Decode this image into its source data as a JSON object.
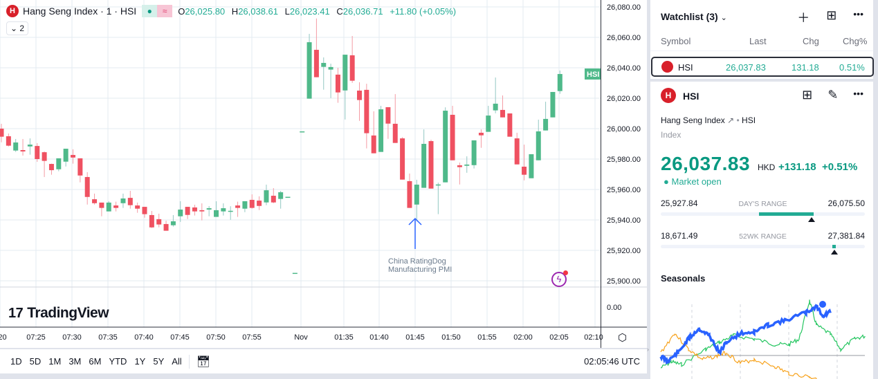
{
  "legend": {
    "title": "Hang Seng Index · 1 · HSI",
    "logo_text": "H",
    "open_label": "O",
    "open": "26,025.80",
    "high_label": "H",
    "high": "26,038.61",
    "low_label": "L",
    "low": "26,023.41",
    "close_label": "C",
    "close": "26,036.71",
    "change": "+11.80 (+0.05%)",
    "collapse_count": "2"
  },
  "price_axis": [
    "26,080.00",
    "26,060.00",
    "26,040.00",
    "26,020.00",
    "26,000.00",
    "25,980.00",
    "25,960.00",
    "25,940.00",
    "25,920.00",
    "25,900.00"
  ],
  "sub_pane_value": "0.00",
  "price_tag": "HSI",
  "time_axis": [
    ":20",
    "07:25",
    "07:30",
    "07:35",
    "07:40",
    "07:45",
    "07:50",
    "07:55",
    "Nov",
    "01:35",
    "01:40",
    "01:45",
    "01:50",
    "01:55",
    "02:00",
    "02:05",
    "02:10"
  ],
  "event": {
    "line1": "China RatingDog",
    "line2": "Manufacturing PMI"
  },
  "branding": "TradingView",
  "bottom_bar": {
    "ranges": [
      "1D",
      "5D",
      "1M",
      "3M",
      "6M",
      "YTD",
      "1Y",
      "5Y",
      "All"
    ],
    "clock": "02:05:46 UTC"
  },
  "colors": {
    "up": "#4fb98a",
    "down": "#ef5161",
    "grid": "#e3ebf2",
    "accent": "#089981",
    "brand": "#d8202a",
    "event": "#2962ff"
  },
  "chart_data": {
    "type": "candlestick",
    "ylim": [
      25900,
      26080
    ],
    "ohlc": [
      [
        26000,
        26003.2,
        25991,
        25994.7
      ],
      [
        25995,
        25996.8,
        25988.3,
        25988.8
      ],
      [
        25985.6,
        25993.2,
        25984.7,
        25990.9
      ],
      [
        25985.9,
        25993.2,
        25982.3,
        25985
      ],
      [
        25988.3,
        25993.6,
        25982.9,
        25989.5
      ],
      [
        25988.6,
        25990.5,
        25978.2,
        25980
      ],
      [
        25984.5,
        25985,
        25968.2,
        25978.8
      ],
      [
        25976.8,
        25977,
        25969.7,
        25972.7
      ],
      [
        25973.3,
        25980.5,
        25972,
        25980.5
      ],
      [
        25978.3,
        25986.8,
        25975.1,
        25986.8
      ],
      [
        25982.7,
        25986.4,
        25977,
        25981
      ],
      [
        25980.5,
        25980.5,
        25964.7,
        25969.2
      ],
      [
        25968.2,
        25971.4,
        25950.1,
        25955.1
      ],
      [
        25953.6,
        25957.3,
        25950.1,
        25951
      ],
      [
        25951.4,
        25951.4,
        25942.4,
        25947.9
      ],
      [
        25945.6,
        25952.3,
        25945.6,
        25951.4
      ],
      [
        25949.5,
        25952,
        25945.6,
        25947.9
      ],
      [
        25951,
        25957.3,
        25947.9,
        25954.1
      ],
      [
        25954.5,
        25959.1,
        25947.4,
        25949.7
      ],
      [
        25949.5,
        25951.4,
        25944.7,
        25947.4
      ],
      [
        25948.6,
        25948.6,
        25941.5,
        25943.8
      ],
      [
        25943.2,
        25945.9,
        25934.7,
        25935.1
      ],
      [
        25940.5,
        25944.1,
        25935.1,
        25937
      ],
      [
        25937.3,
        25939.5,
        25932.9,
        25932.9
      ],
      [
        25936.5,
        25943.2,
        25935.6,
        25939.1
      ],
      [
        25942.4,
        25952.3,
        25938.7,
        25946.8
      ],
      [
        25948.6,
        25948.6,
        25940.6,
        25943.3
      ],
      [
        25948.2,
        25950,
        25942.9,
        25945.6
      ],
      [
        25946.4,
        25950.9,
        25939.7,
        25945.6
      ],
      [
        25946.8,
        25949.1,
        25942.4,
        25947.7
      ],
      [
        25942,
        25952.3,
        25942,
        25946.4
      ],
      [
        25945.6,
        25950.9,
        25942.9,
        25947.7
      ],
      [
        25945.6,
        25949,
        25940.1,
        25946
      ],
      [
        25949.5,
        25952,
        25942,
        25947.9
      ],
      [
        25947.4,
        25952.3,
        25945.1,
        25952.3
      ],
      [
        25953.2,
        25956.8,
        25947.4,
        25947.9
      ],
      [
        25952.7,
        25955.5,
        25946.5,
        25949.2
      ],
      [
        25951.5,
        25963.2,
        25949.7,
        25959.5
      ],
      [
        25955.9,
        25960.9,
        25951,
        25951.5
      ],
      [
        25953.8,
        25959.1,
        25947.4,
        25958.2
      ],
      [
        25955,
        25955,
        25955,
        25955.2
      ],
      [
        25905,
        25905,
        25905,
        25905.2
      ],
      [
        25998,
        25998,
        25998,
        25998.2
      ],
      [
        26019.7,
        26062.3,
        26019.7,
        26056.8
      ],
      [
        26051.8,
        26072.4,
        26033.8,
        26033.8
      ],
      [
        26040.6,
        26046.8,
        26025.6,
        26043.2
      ],
      [
        26038.8,
        26042.7,
        26020.1,
        26040.5
      ],
      [
        26035.5,
        26040,
        26017,
        26023.8
      ],
      [
        26025.1,
        26048.6,
        26006,
        26048.6
      ],
      [
        26048.2,
        26060.9,
        26030.1,
        26031.5
      ],
      [
        26025,
        26030.5,
        26005.1,
        26018.8
      ],
      [
        26025.5,
        26029.5,
        25987,
        25997
      ],
      [
        25995.5,
        26011.4,
        25983.8,
        25983.8
      ],
      [
        25984.7,
        26015,
        25984.7,
        26012.7
      ],
      [
        26014.1,
        26014.1,
        25993.3,
        26003.3
      ],
      [
        26003.2,
        26022.7,
        25990.6,
        25990.6
      ],
      [
        25993.6,
        25994.4,
        25966.5,
        25966.5
      ],
      [
        25965.5,
        25970.5,
        25947.9,
        25947.9
      ],
      [
        25950.1,
        25966.4,
        25939,
        25963.2
      ],
      [
        25961.1,
        25999.5,
        25961.1,
        25990
      ],
      [
        25991.8,
        25992.7,
        25960.6,
        25960.6
      ],
      [
        25963,
        25964.5,
        25943.8,
        25963.3
      ],
      [
        25964.7,
        26014,
        25964.7,
        26011.8
      ],
      [
        26009.1,
        26015,
        25979.2,
        25979.2
      ],
      [
        25975.9,
        25977.7,
        25963.3,
        25974.7
      ],
      [
        25975.6,
        25981.8,
        25971,
        25976.4
      ],
      [
        25976,
        25992.3,
        25973.8,
        25992.3
      ],
      [
        25997.3,
        25999.5,
        25987.4,
        25995.6
      ],
      [
        25997.9,
        26015,
        25997.9,
        26008.6
      ],
      [
        26012,
        26033.6,
        26010.1,
        26016.4
      ],
      [
        26012.3,
        26021.8,
        26007.4,
        26007.4
      ],
      [
        26010,
        26010,
        25994.7,
        25994.7
      ],
      [
        25993.6,
        25997.3,
        25976.5,
        25976.5
      ],
      [
        25975,
        25989.5,
        25966,
        25969.7
      ],
      [
        25967.4,
        25983.2,
        25967.4,
        25983.2
      ],
      [
        25979.2,
        26005.9,
        25979.2,
        25998.2
      ],
      [
        25998.8,
        26017.7,
        25998.8,
        26006.4
      ],
      [
        26007.4,
        26024.1,
        26007.4,
        26024.1
      ],
      [
        26024.7,
        26038.2,
        26022.9,
        26035.9
      ]
    ]
  },
  "watchlist": {
    "title": "Watchlist (3)",
    "columns": [
      "Symbol",
      "Last",
      "Chg",
      "Chg%"
    ],
    "rows": [
      {
        "symbol": "HSI",
        "last": "26,037.83",
        "chg": "131.18",
        "chg_pct": "0.51%"
      }
    ]
  },
  "details": {
    "symbol": "HSI",
    "name": "Hang Seng Index",
    "exchange": "HSI",
    "type": "Index",
    "price": "26,037.83",
    "currency": "HKD",
    "change": "+131.18",
    "change_pct": "+0.51%",
    "status": "Market open",
    "days_range": {
      "label": "DAY'S RANGE",
      "low": "25,927.84",
      "high": "26,075.50",
      "fill_from": 0.48,
      "fill_to": 0.75,
      "current": 0.74
    },
    "wk52_range": {
      "label": "52WK RANGE",
      "low": "18,671.49",
      "high": "27,381.84",
      "current": 0.85
    }
  },
  "seasonals": {
    "title": "Seasonals"
  }
}
